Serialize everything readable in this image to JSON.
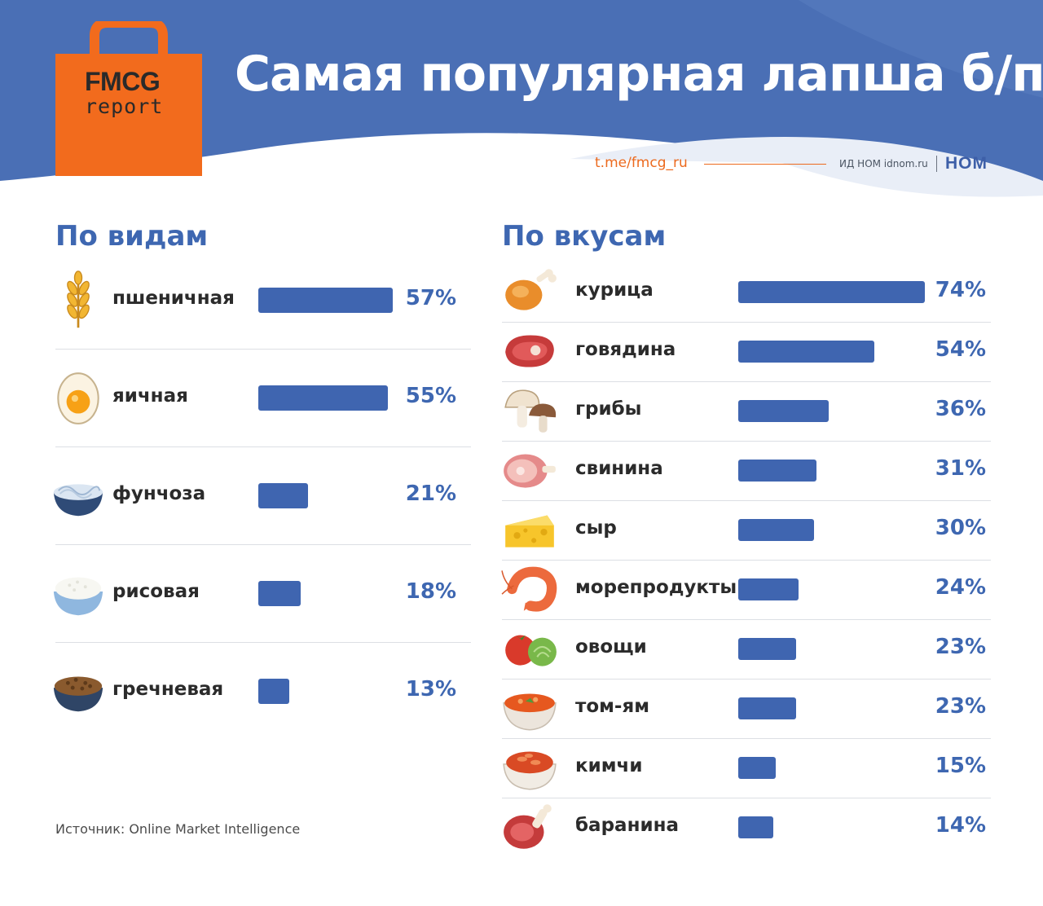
{
  "header": {
    "title": "Самая популярная лапша б/п",
    "logo_top": "FMCG",
    "logo_bottom": "report",
    "telegram": "t.me/fmcg_ru",
    "publisher": "ИД НОМ idnom.ru",
    "publisher_logo": "НОМ"
  },
  "colors": {
    "header_blue": "#4a6fb5",
    "bar": "#3f65b0",
    "accent_orange": "#f26b1d",
    "pct_text": "#3e67b1"
  },
  "source": "Источник: Online Market Intelligence",
  "chart_data": [
    {
      "type": "bar",
      "title": "По видам",
      "unit": "%",
      "categories": [
        "пшеничная",
        "яичная",
        "фунчоза",
        "рисовая",
        "гречневая"
      ],
      "values": [
        57,
        55,
        21,
        18,
        13
      ],
      "labels": [
        "57%",
        "55%",
        "21%",
        "18%",
        "13%"
      ],
      "icons": [
        "wheat-icon",
        "egg-icon",
        "funchoza-bowl-icon",
        "rice-bowl-icon",
        "buckwheat-bowl-icon"
      ]
    },
    {
      "type": "bar",
      "title": "По вкусам",
      "unit": "%",
      "categories": [
        "курица",
        "говядина",
        "грибы",
        "свинина",
        "сыр",
        "морепродукты",
        "овощи",
        "том-ям",
        "кимчи",
        "баранина"
      ],
      "values": [
        74,
        54,
        36,
        31,
        30,
        24,
        23,
        23,
        15,
        14
      ],
      "labels": [
        "74%",
        "54%",
        "36%",
        "31%",
        "30%",
        "24%",
        "23%",
        "23%",
        "15%",
        "14%"
      ],
      "icons": [
        "chicken-leg-icon",
        "beef-steak-icon",
        "mushroom-icon",
        "ham-icon",
        "cheese-icon",
        "shrimp-icon",
        "vegetables-icon",
        "tom-yum-bowl-icon",
        "kimchi-bowl-icon",
        "lamb-icon"
      ]
    }
  ]
}
